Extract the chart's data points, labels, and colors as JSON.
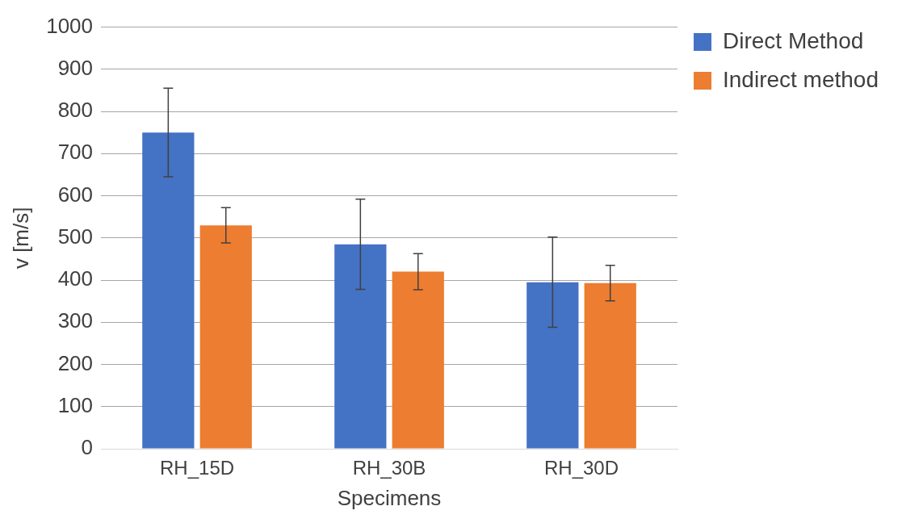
{
  "chart_data": {
    "type": "bar",
    "xlabel": "Specimens",
    "ylabel": "v [m/s]",
    "categories": [
      "RH_15D",
      "RH_30B",
      "RH_30D"
    ],
    "series": [
      {
        "name": "Direct Method",
        "color": "#4472c4",
        "values": [
          750,
          485,
          395
        ],
        "errors": [
          105,
          107,
          107
        ]
      },
      {
        "name": "Indirect method",
        "color": "#ed7d31",
        "values": [
          530,
          420,
          393
        ],
        "errors": [
          42,
          43,
          42
        ]
      }
    ],
    "ylim": [
      0,
      1000
    ],
    "yticks": [
      0,
      100,
      200,
      300,
      400,
      500,
      600,
      700,
      800,
      900,
      1000
    ],
    "grid": "y",
    "legend": "top right"
  }
}
